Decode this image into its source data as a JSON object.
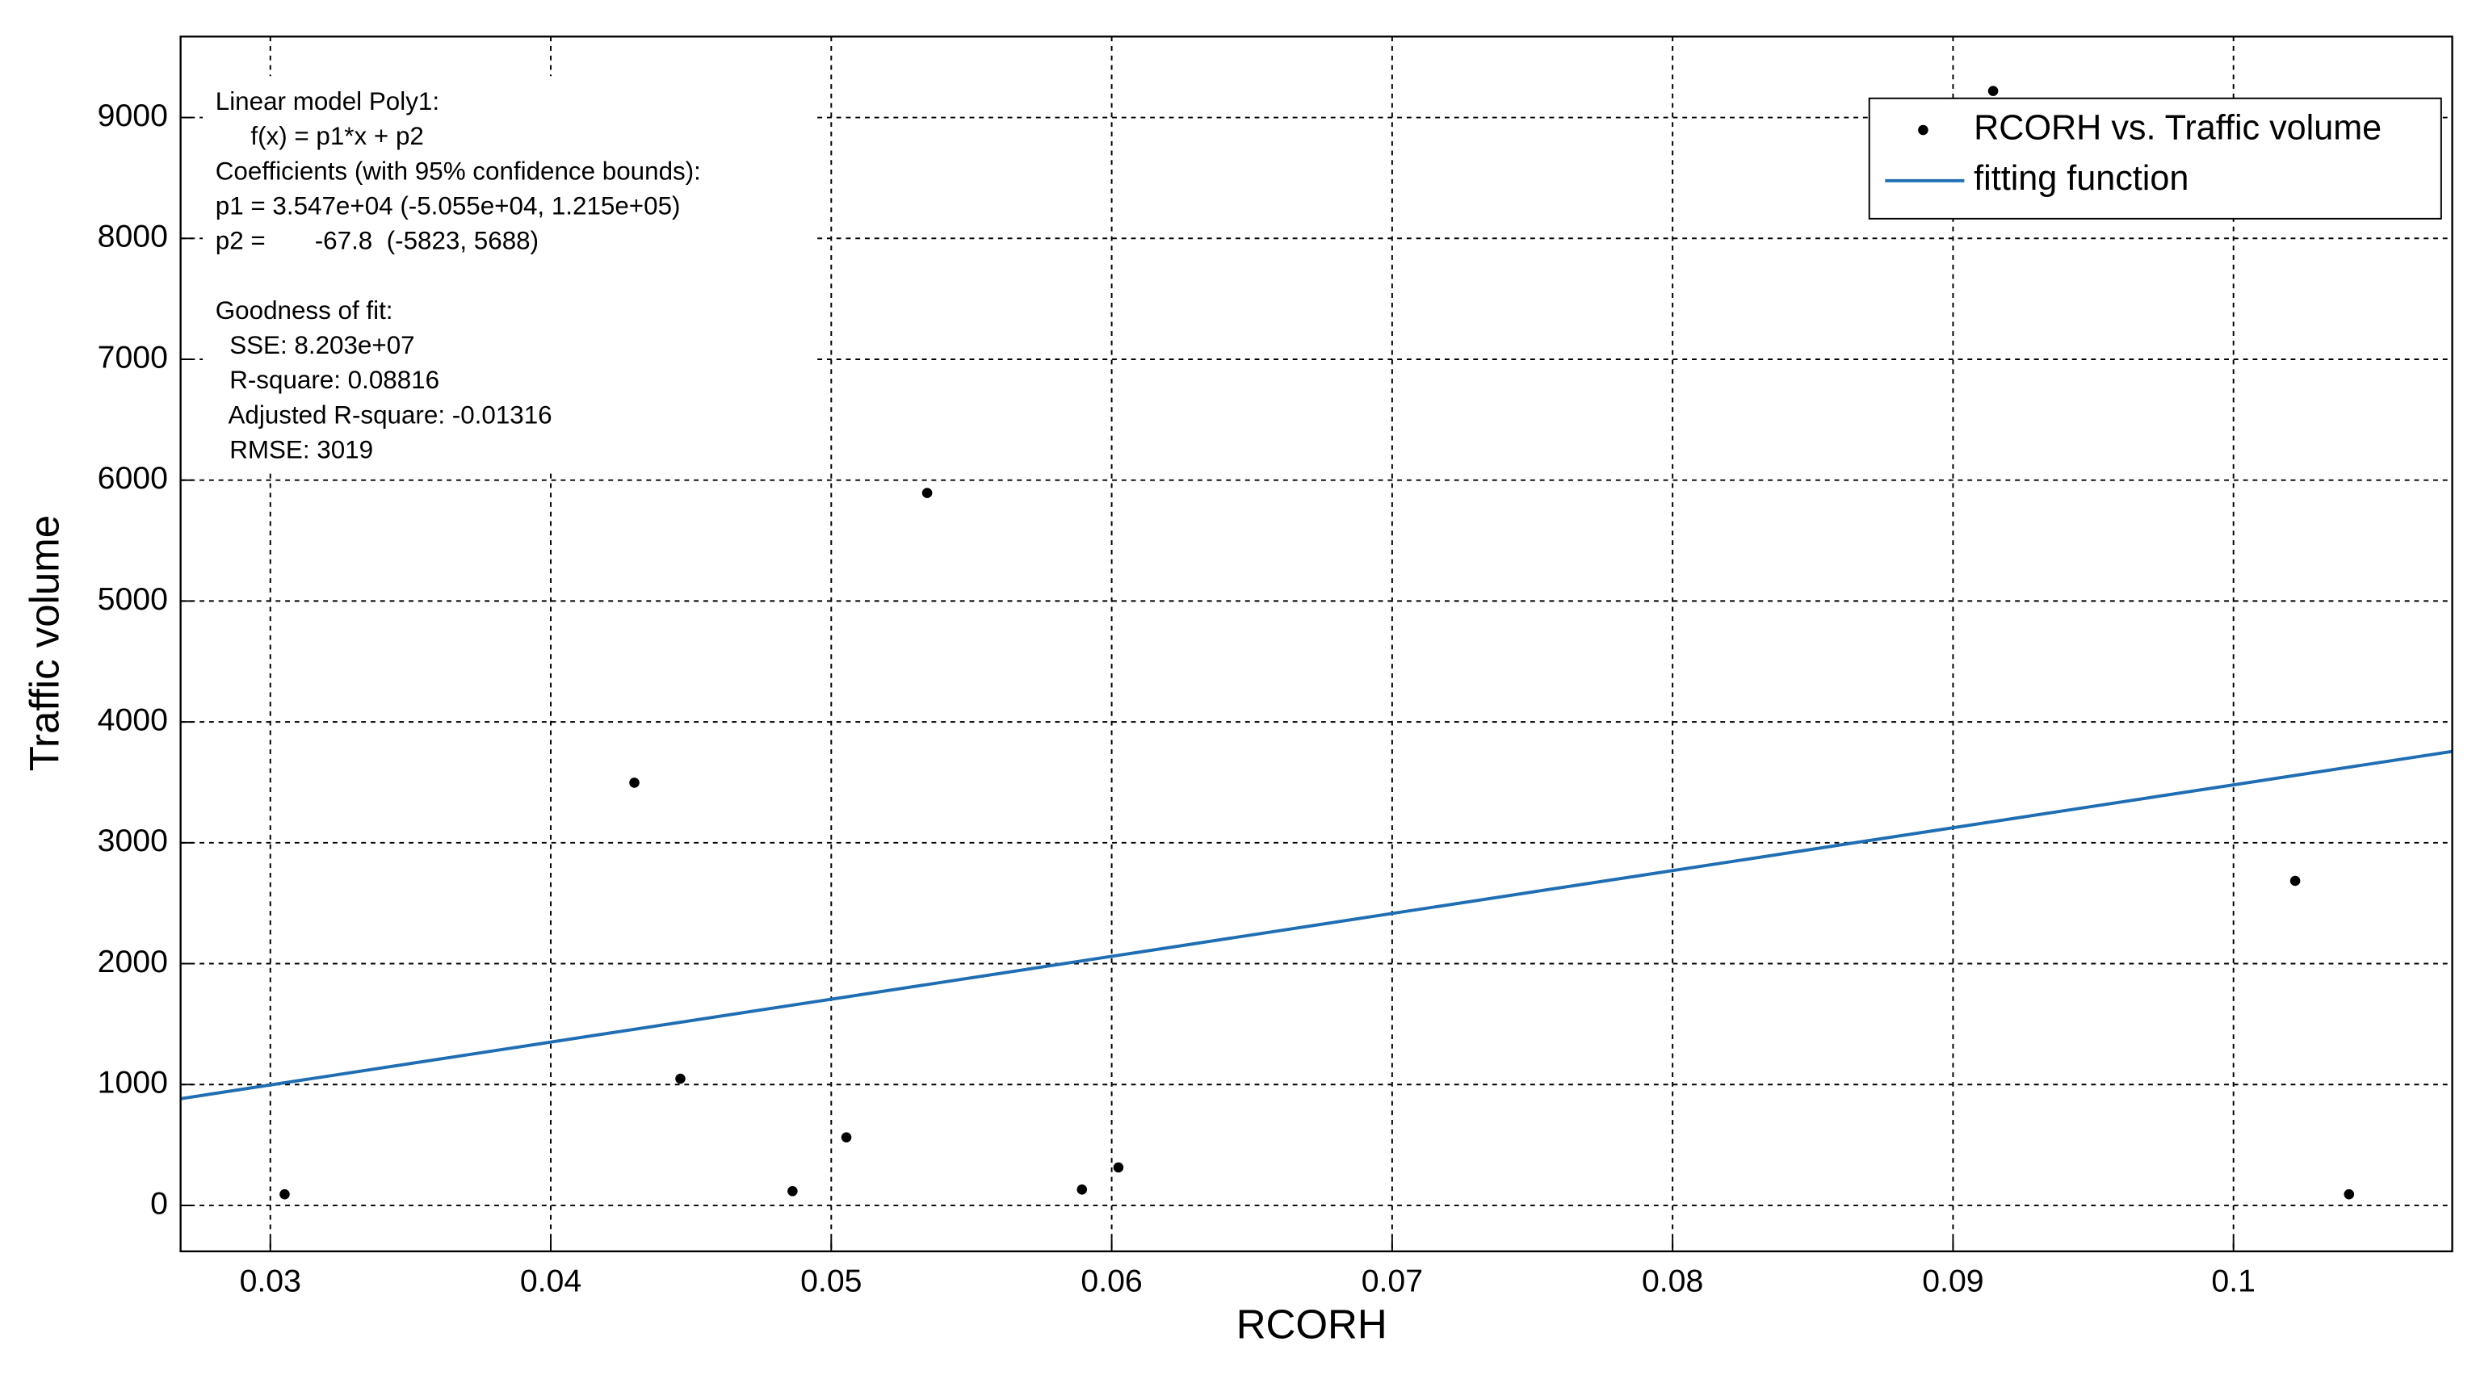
{
  "chart_data": {
    "type": "scatter",
    "xlabel": "RCORH",
    "ylabel": "Traffic volume",
    "xlim": [
      0.0268,
      0.1078
    ],
    "ylim": [
      -380,
      9670
    ],
    "xticks": [
      0.03,
      0.04,
      0.05,
      0.06,
      0.07,
      0.08,
      0.09,
      0.1
    ],
    "yticks": [
      0,
      1000,
      2000,
      3000,
      4000,
      5000,
      6000,
      7000,
      8000,
      9000
    ],
    "grid": true,
    "legend": "upper right",
    "annotation": [
      "Linear model Poly1:",
      "     f(x) = p1*x + p2",
      "Coefficients (with 95% confidence bounds):",
      "p1 = 3.547e+04 (-5.055e+04, 1.215e+05)",
      "p2 =       -67.8  (-5823, 5688)",
      "Goodness of fit:",
      "  SSE: 8.203e+07",
      "  R-square: 0.08816",
      "  Adjusted R-square: -0.01316",
      "  RMSE: 3019"
    ],
    "series": [
      {
        "name": "RCORH vs. Traffic volume",
        "type": "scatter",
        "color": "#000000",
        "x": [
          0.03051,
          0.04298,
          0.04462,
          0.04862,
          0.05054,
          0.05342,
          0.05894,
          0.06024,
          0.09143,
          0.1022,
          0.10412
        ],
        "values": [
          92,
          3497,
          1048,
          118,
          563,
          5894,
          131,
          314,
          9220,
          2685,
          92
        ]
      },
      {
        "name": "fitting function",
        "type": "line",
        "color": "#1f6db3",
        "x": [
          0.0268,
          0.1078
        ],
        "values": [
          883,
          3756
        ]
      }
    ]
  }
}
